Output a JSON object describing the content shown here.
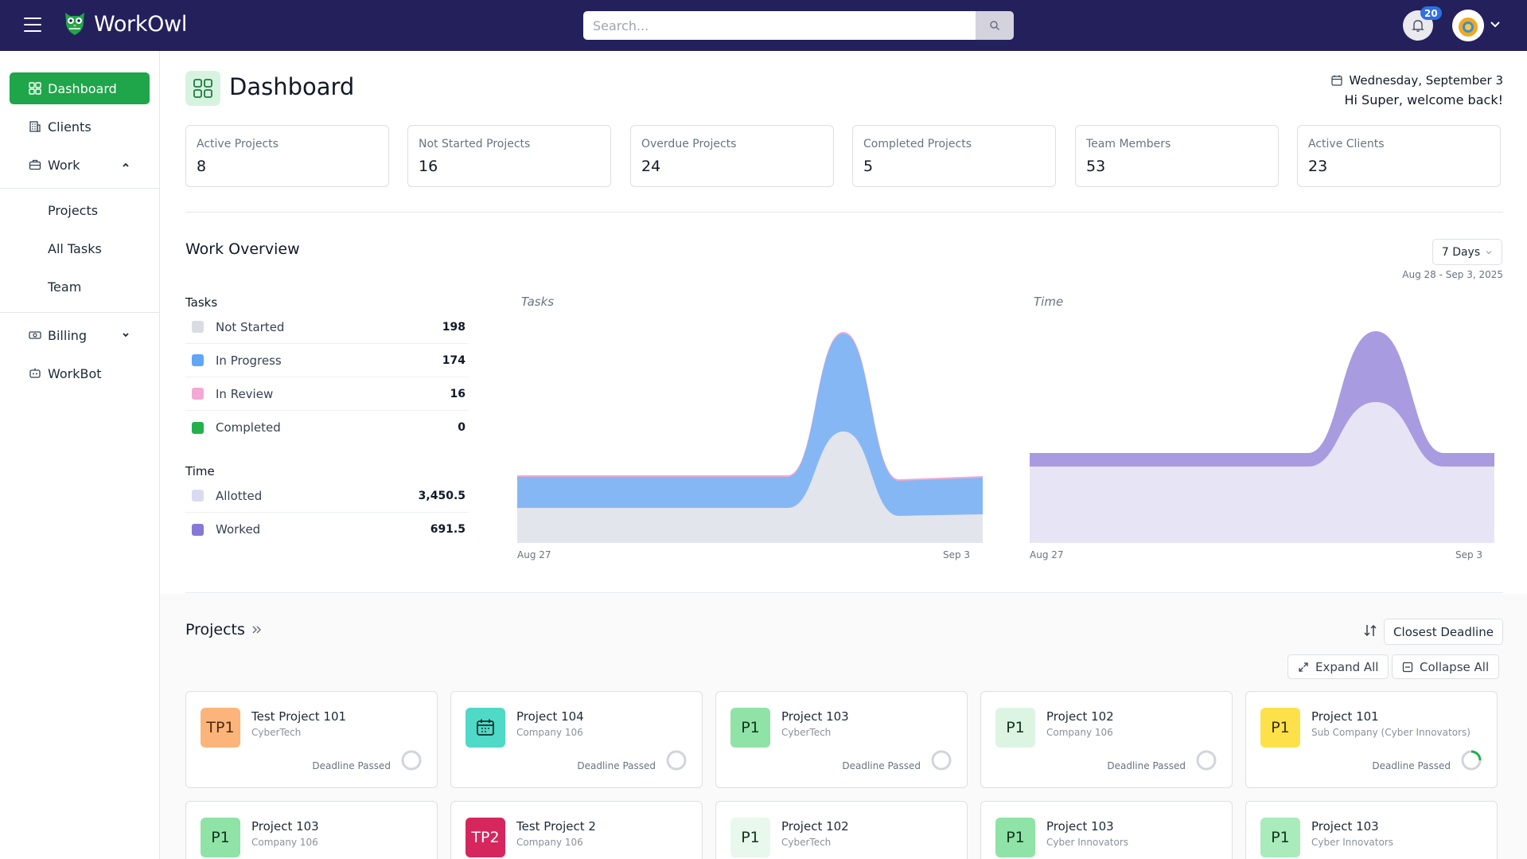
{
  "app": {
    "name": "WorkOwl"
  },
  "search": {
    "placeholder": "Search..."
  },
  "notifications": {
    "count": "20"
  },
  "sidebar": {
    "dashboard": "Dashboard",
    "clients": "Clients",
    "work": "Work",
    "projects": "Projects",
    "all_tasks": "All Tasks",
    "team": "Team",
    "billing": "Billing",
    "workbot": "WorkBot"
  },
  "page": {
    "title": "Dashboard",
    "date": "Wednesday, September 3",
    "welcome": "Hi Super, welcome back!"
  },
  "stats": [
    {
      "label": "Active Projects",
      "value": "8"
    },
    {
      "label": "Not Started Projects",
      "value": "16"
    },
    {
      "label": "Overdue Projects",
      "value": "24"
    },
    {
      "label": "Completed Projects",
      "value": "5"
    },
    {
      "label": "Team Members",
      "value": "53"
    },
    {
      "label": "Active Clients",
      "value": "23"
    }
  ],
  "overview": {
    "title": "Work Overview",
    "range_option": "7 Days",
    "range_text": "Aug 28 - Sep 3, 2025",
    "tasks_heading": "Tasks",
    "tasks": [
      {
        "label": "Not Started",
        "value": "198",
        "color": "#d9dce3"
      },
      {
        "label": "In Progress",
        "value": "174",
        "color": "#5fa6f7"
      },
      {
        "label": "In Review",
        "value": "16",
        "color": "#f3a9d3"
      },
      {
        "label": "Completed",
        "value": "0",
        "color": "#22b14c"
      }
    ],
    "time_heading": "Time",
    "time": [
      {
        "label": "Allotted",
        "value": "3,450.5",
        "color": "#dcdaf0"
      },
      {
        "label": "Worked",
        "value": "691.5",
        "color": "#8878d6"
      }
    ],
    "chart_tasks_title": "Tasks",
    "chart_time_title": "Time",
    "x_start": "Aug 27",
    "x_end": "Sep 3"
  },
  "projects": {
    "title": "Projects",
    "sort_label": "Closest Deadline",
    "expand_label": "Expand All",
    "collapse_label": "Collapse All",
    "cards": [
      {
        "badge": "TP1",
        "name": "Test Project 101",
        "client": "CyberTech",
        "status": "Deadline Passed",
        "badge_bg": "#fbb57a",
        "badge_fg": "#4b2a10",
        "icon": ""
      },
      {
        "badge": "",
        "name": "Project 104",
        "client": "Company 106",
        "status": "Deadline Passed",
        "badge_bg": "#4fd9c7",
        "badge_fg": "#0f2d2a",
        "icon": "calendar-icon"
      },
      {
        "badge": "P1",
        "name": "Project 103",
        "client": "CyberTech",
        "status": "Deadline Passed",
        "badge_bg": "#8fe3a6",
        "badge_fg": "#12331c",
        "icon": ""
      },
      {
        "badge": "P1",
        "name": "Project 102",
        "client": "Company 106",
        "status": "Deadline Passed",
        "badge_bg": "#dcf5e3",
        "badge_fg": "#12331c",
        "icon": ""
      },
      {
        "badge": "P1",
        "name": "Project 101",
        "client": "Sub Company (Cyber Innovators)",
        "status": "Deadline Passed",
        "badge_bg": "#fde14a",
        "badge_fg": "#3a2f05",
        "icon": ""
      },
      {
        "badge": "P1",
        "name": "Project 103",
        "client": "Company 106",
        "status": "",
        "badge_bg": "#8fe3a6",
        "badge_fg": "#12331c",
        "icon": ""
      },
      {
        "badge": "TP2",
        "name": "Test Project 2",
        "client": "Company 106",
        "status": "",
        "badge_bg": "#d6265e",
        "badge_fg": "#ffffff",
        "icon": ""
      },
      {
        "badge": "P1",
        "name": "Project 102",
        "client": "CyberTech",
        "status": "",
        "badge_bg": "#e8f8ec",
        "badge_fg": "#12331c",
        "icon": ""
      },
      {
        "badge": "P1",
        "name": "Project 103",
        "client": "Cyber Innovators",
        "status": "",
        "badge_bg": "#8fe3a6",
        "badge_fg": "#12331c",
        "icon": ""
      },
      {
        "badge": "P1",
        "name": "Project 103",
        "client": "Cyber Innovators",
        "status": "",
        "badge_bg": "#a9ebbb",
        "badge_fg": "#12331c",
        "icon": ""
      }
    ]
  }
}
